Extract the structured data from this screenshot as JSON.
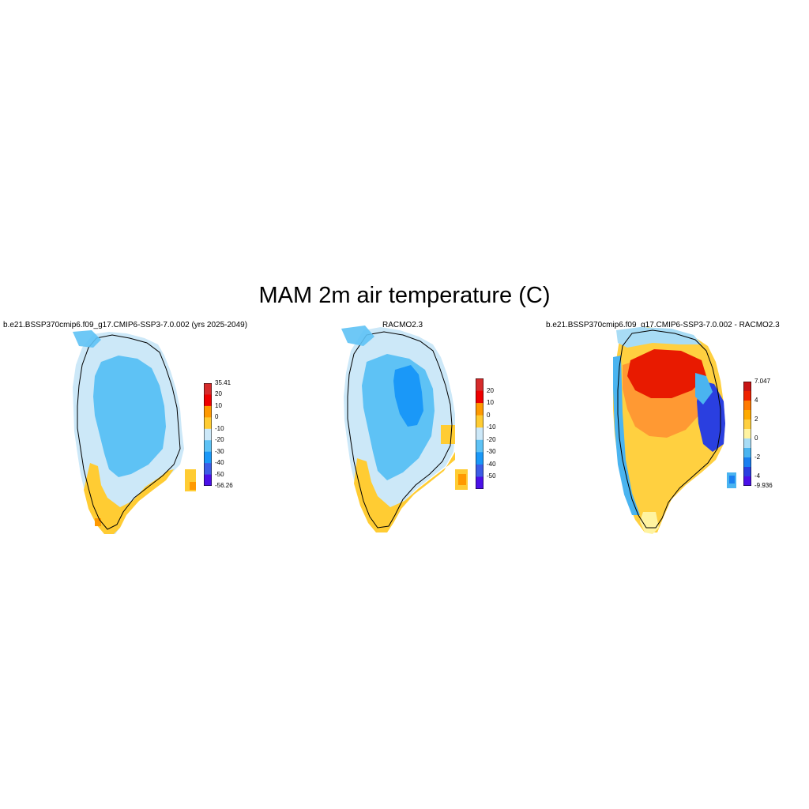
{
  "title": "MAM 2m air temperature (C)",
  "panels": [
    {
      "id": "model",
      "title": "b.e21.BSSP370cmip6.f09_g17.CMIP6-SSP3-7.0.002 (yrs 2025-2049)",
      "colorbar": {
        "labels": [
          "35.41",
          "20",
          "10",
          "0",
          "-10",
          "-20",
          "-30",
          "-40",
          "-50",
          "-56.26"
        ],
        "colors": [
          "#d62b2b",
          "#ee0000",
          "#ff9900",
          "#ffcc33",
          "#cce8f8",
          "#5ec2f5",
          "#1a98f8",
          "#3c5de6",
          "#4a10e8"
        ]
      }
    },
    {
      "id": "racmo",
      "title": "RACMO2.3",
      "colorbar": {
        "labels": [
          "20",
          "10",
          "0",
          "-10",
          "-20",
          "-30",
          "-40",
          "-50"
        ],
        "colors": [
          "#d62b2b",
          "#ee0000",
          "#ff9900",
          "#ffcc33",
          "#cce8f8",
          "#5ec2f5",
          "#1a98f8",
          "#3c5de6",
          "#4a10e8"
        ]
      }
    },
    {
      "id": "diff",
      "title": "b.e21.BSSP370cmip6.f09_g17.CMIP6-SSP3-7.0.002 - RACMO2.3",
      "colorbar": {
        "labels": [
          "7.047",
          "4",
          "2",
          "0",
          "-2",
          "-4",
          "-9.936"
        ],
        "colors": [
          "#c81414",
          "#ee2200",
          "#ff7a00",
          "#ffaa00",
          "#ffd040",
          "#fff3a0",
          "#a8dcf5",
          "#4ab4f0",
          "#1a7ff0",
          "#2a3fe0",
          "#4a10e8"
        ]
      }
    }
  ]
}
